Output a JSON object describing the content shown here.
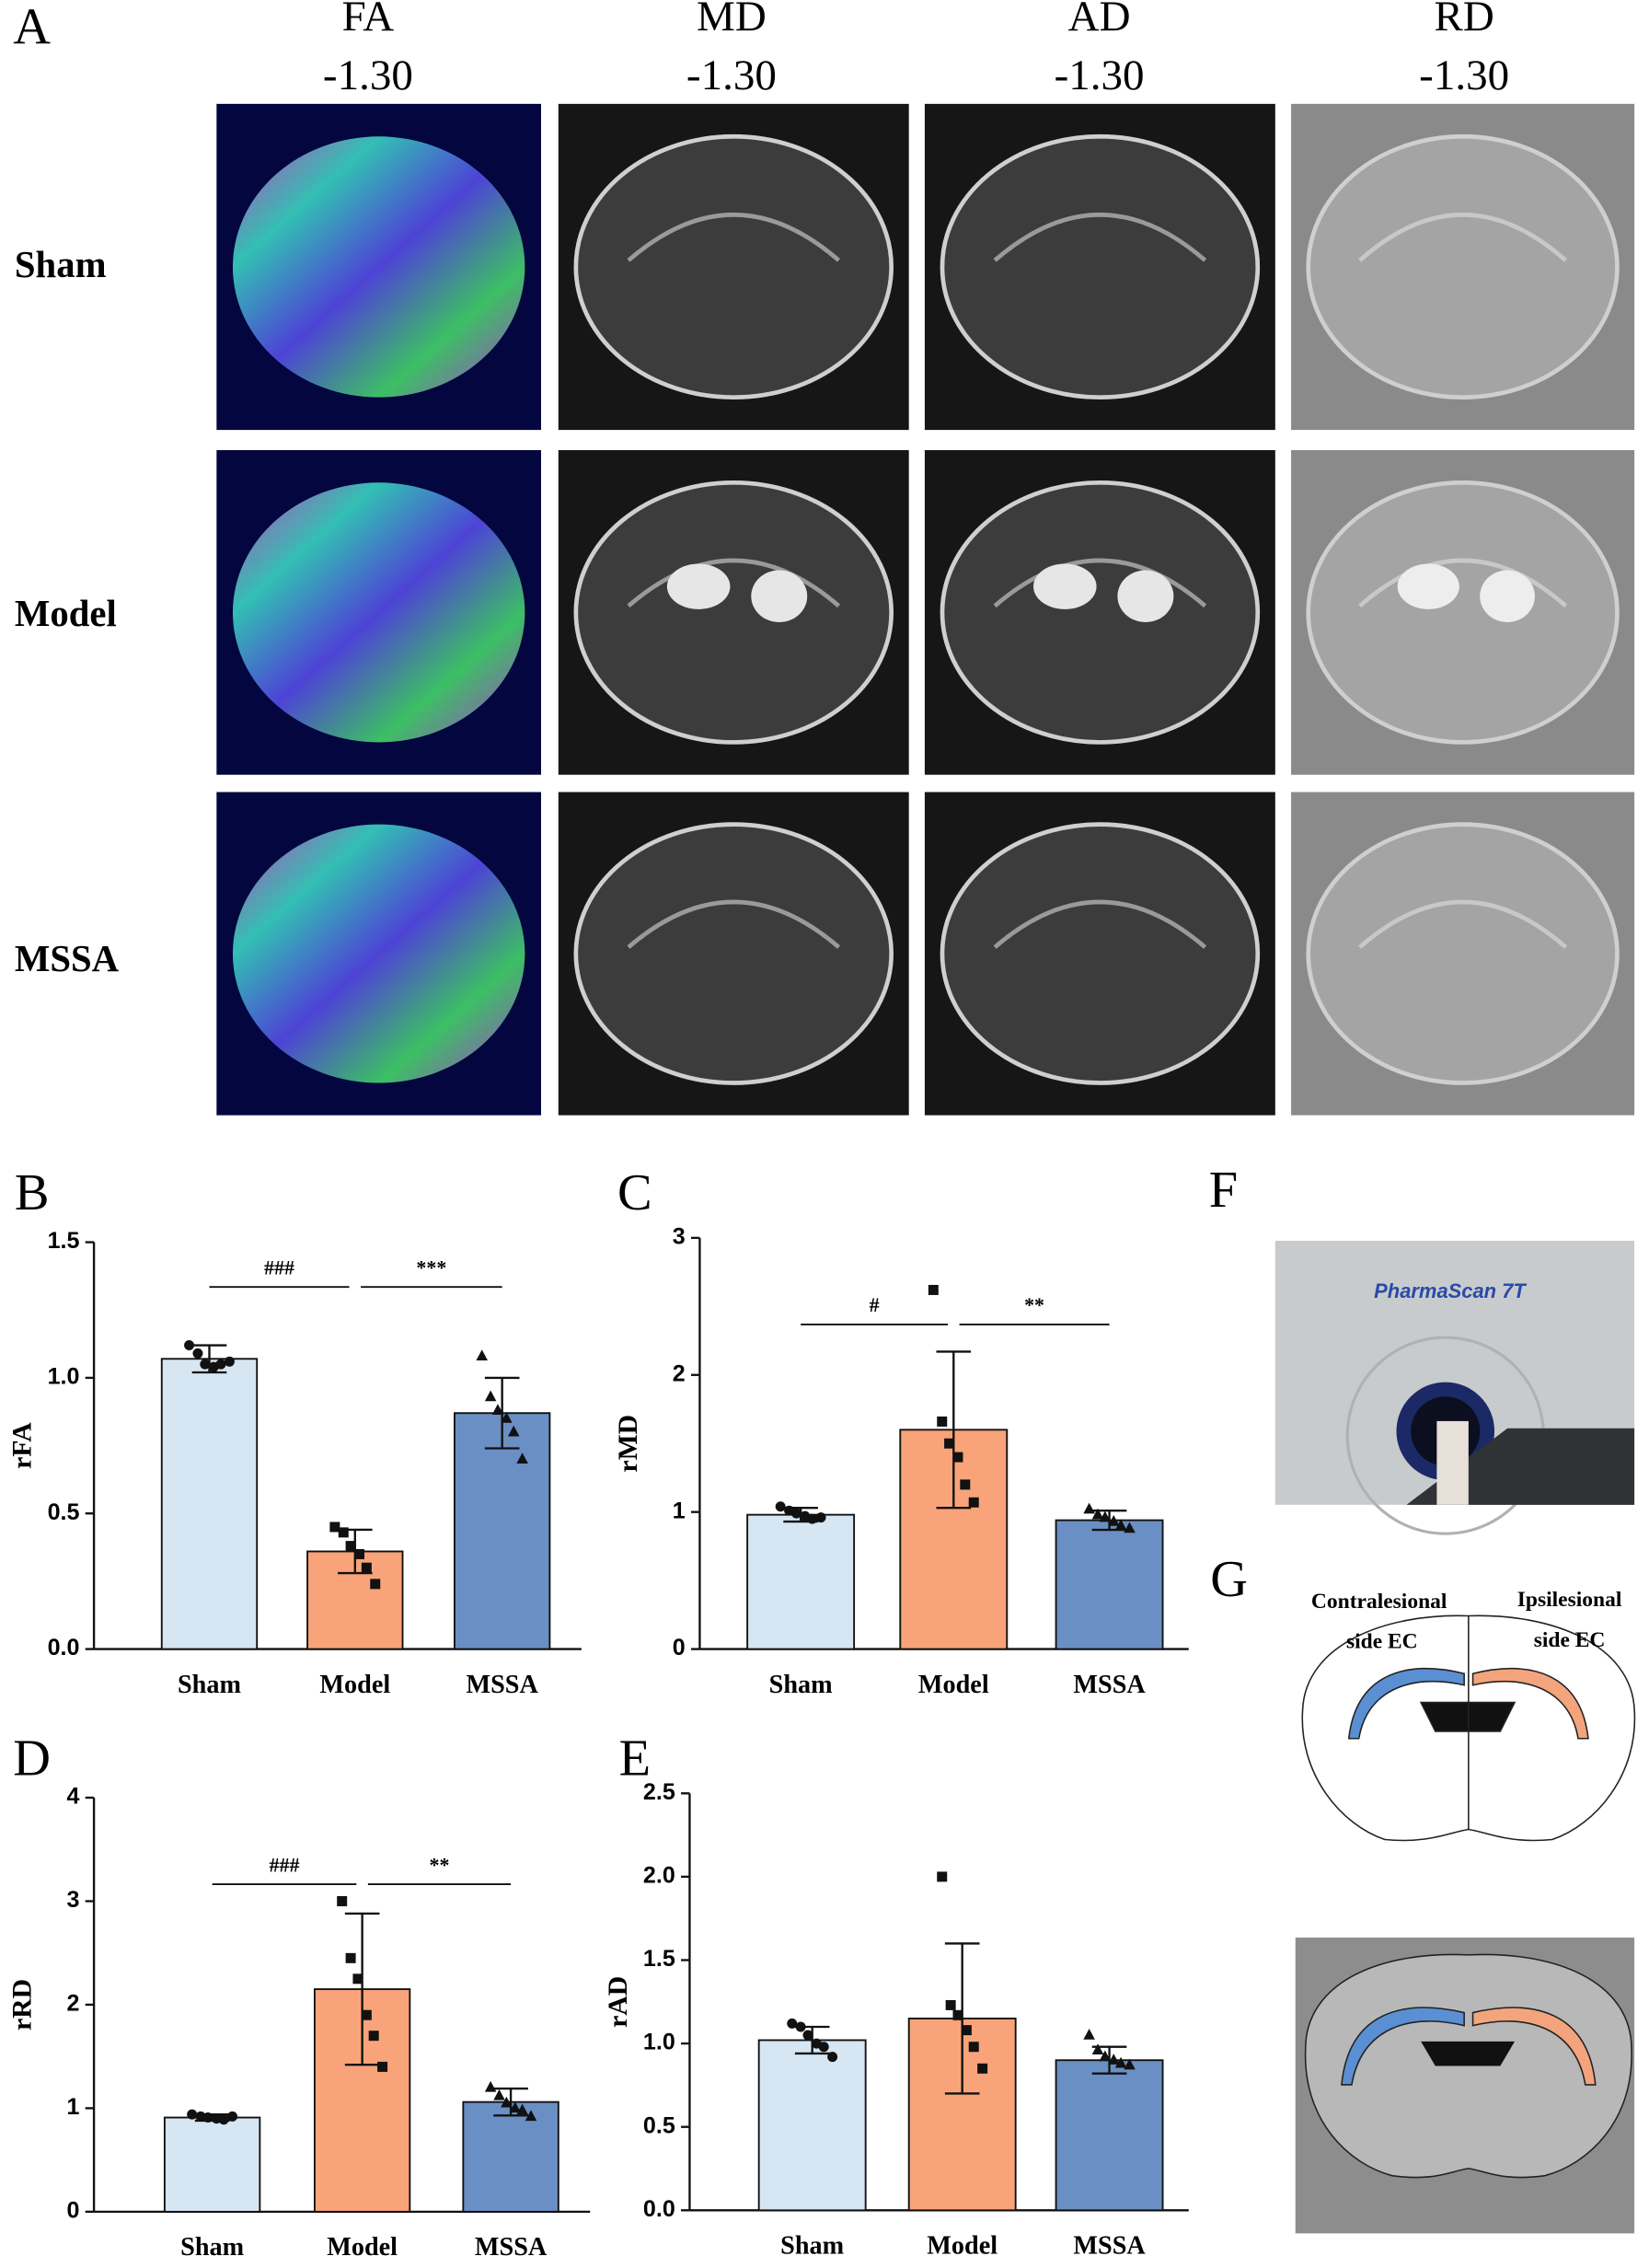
{
  "panel_labels": [
    "A",
    "B",
    "C",
    "D",
    "E",
    "F",
    "G"
  ],
  "panel_a": {
    "columns": [
      {
        "name": "FA",
        "coordinate": "-1.30"
      },
      {
        "name": "MD",
        "coordinate": "-1.30"
      },
      {
        "name": "AD",
        "coordinate": "-1.30"
      },
      {
        "name": "RD",
        "coordinate": "-1.30"
      }
    ],
    "rows": [
      "Sham",
      "Model",
      "MSSA"
    ]
  },
  "panel_f": {
    "scanner_label": "PharmaScan 7T"
  },
  "panel_g": {
    "labels": [
      "Contralesional",
      "side EC",
      "Ipsilesional",
      "side EC"
    ]
  },
  "chart_data": [
    {
      "type": "bar",
      "ylabel": "rFA",
      "categories": [
        "Sham",
        "Model",
        "MSSA"
      ],
      "colors": [
        "#d6e6f2",
        "#f8a37a",
        "#6a8fc4"
      ],
      "values": [
        1.07,
        0.36,
        0.87
      ],
      "errors": [
        0.05,
        0.08,
        0.13
      ],
      "points": [
        [
          1.12,
          1.09,
          1.05,
          1.04,
          1.05,
          1.06
        ],
        [
          0.45,
          0.43,
          0.38,
          0.35,
          0.3,
          0.24
        ],
        [
          1.08,
          0.93,
          0.88,
          0.85,
          0.8,
          0.7
        ]
      ],
      "annotations": [
        "###",
        "***"
      ],
      "ylim": [
        0,
        1.5
      ],
      "yticks": [
        {
          "value": 0,
          "label": "0.0"
        },
        0.5,
        {
          "value": 1,
          "label": "1.0"
        },
        1.5
      ]
    },
    {
      "type": "bar",
      "ylabel": "rMD",
      "categories": [
        "Sham",
        "Model",
        "MSSA"
      ],
      "colors": [
        "#d6e6f2",
        "#f8a37a",
        "#6a8fc4"
      ],
      "values": [
        0.98,
        1.6,
        0.94
      ],
      "errors": [
        0.05,
        0.57,
        0.07
      ],
      "points": [
        [
          1.04,
          1.01,
          0.99,
          0.97,
          0.95,
          0.96
        ],
        [
          2.62,
          1.66,
          1.5,
          1.4,
          1.2,
          1.07
        ],
        [
          1.02,
          0.98,
          0.96,
          0.93,
          0.9,
          0.88
        ]
      ],
      "annotations": [
        "#",
        "**"
      ],
      "ylim": [
        0,
        3
      ],
      "yticks": [
        0,
        1,
        2,
        3
      ]
    },
    {
      "type": "bar",
      "ylabel": "rRD",
      "categories": [
        "Sham",
        "Model",
        "MSSA"
      ],
      "colors": [
        "#d6e6f2",
        "#f8a37a",
        "#6a8fc4"
      ],
      "values": [
        0.91,
        2.15,
        1.06
      ],
      "errors": [
        0.03,
        0.73,
        0.13
      ],
      "points": [
        [
          0.94,
          0.92,
          0.91,
          0.9,
          0.89,
          0.92
        ],
        [
          3.0,
          2.45,
          2.25,
          1.9,
          1.7,
          1.4
        ],
        [
          1.2,
          1.12,
          1.05,
          1.0,
          0.98,
          0.92
        ]
      ],
      "annotations": [
        "###",
        "**"
      ],
      "ylim": [
        0,
        4
      ],
      "yticks": [
        0,
        1,
        2,
        3,
        4
      ]
    },
    {
      "type": "bar",
      "ylabel": "rAD",
      "categories": [
        "Sham",
        "Model",
        "MSSA"
      ],
      "colors": [
        "#d6e6f2",
        "#f8a37a",
        "#6a8fc4"
      ],
      "values": [
        1.02,
        1.15,
        0.9
      ],
      "errors": [
        0.08,
        0.45,
        0.08
      ],
      "points": [
        [
          1.12,
          1.1,
          1.05,
          1.0,
          0.98,
          0.92
        ],
        [
          2.0,
          1.23,
          1.17,
          1.08,
          0.98,
          0.85
        ],
        [
          1.05,
          0.96,
          0.92,
          0.9,
          0.88,
          0.87
        ]
      ],
      "annotations": [],
      "ylim": [
        0,
        2.5
      ],
      "yticks": [
        {
          "value": 0,
          "label": "0.0"
        },
        0.5,
        {
          "value": 1,
          "label": "1.0"
        },
        1.5,
        {
          "value": 2,
          "label": "2.0"
        },
        2.5
      ]
    }
  ]
}
